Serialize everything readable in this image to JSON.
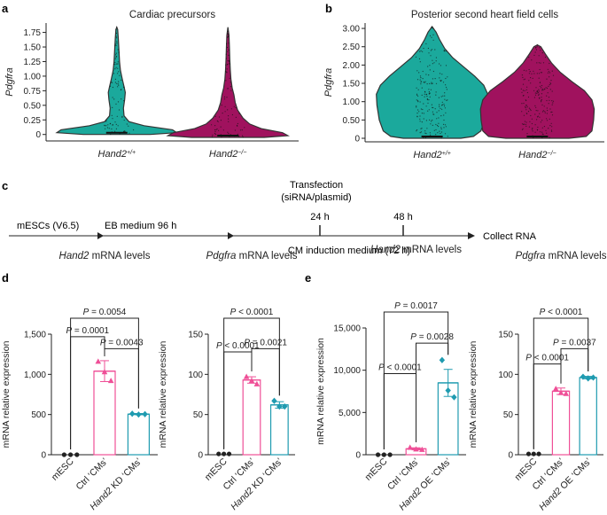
{
  "panel_letters": [
    "a",
    "b",
    "c",
    "d",
    "e"
  ],
  "colors": {
    "teal": "#1ba99c",
    "magenta": "#a0125e",
    "pink": "#ef4f97",
    "teal_bar": "#1f9bb0",
    "dark": "#333333"
  },
  "chart_data": [
    {
      "id": "a",
      "type": "violin",
      "title": "Cardiac precursors",
      "ylabel": "Pdgfra",
      "ylim": [
        0,
        1.85
      ],
      "yticks": [
        "0",
        "0.25",
        "0.50",
        "0.75",
        "1.00",
        "1.25",
        "1.50",
        "1.75"
      ],
      "categories": [
        {
          "gene": "Hand2",
          "sup": "+/+"
        },
        {
          "gene": "Hand2",
          "sup": "−/−"
        }
      ],
      "violins": [
        {
          "group": "Hand2+/+",
          "color": "teal",
          "profile": [
            [
              0,
              0.55
            ],
            [
              0.03,
              0.99
            ],
            [
              0.08,
              0.92
            ],
            [
              0.15,
              0.45
            ],
            [
              0.22,
              0.2
            ],
            [
              0.32,
              0.12
            ],
            [
              0.45,
              0.11
            ],
            [
              0.6,
              0.13
            ],
            [
              0.72,
              0.14
            ],
            [
              0.82,
              0.12
            ],
            [
              0.95,
              0.09
            ],
            [
              1.1,
              0.06
            ],
            [
              1.25,
              0.045
            ],
            [
              1.45,
              0.035
            ],
            [
              1.65,
              0.025
            ],
            [
              1.8,
              0.015
            ],
            [
              1.84,
              0.0
            ]
          ]
        },
        {
          "group": "Hand2−/−",
          "color": "magenta",
          "profile": [
            [
              -0.05,
              0.6
            ],
            [
              -0.02,
              0.99
            ],
            [
              0.03,
              0.9
            ],
            [
              0.1,
              0.55
            ],
            [
              0.18,
              0.36
            ],
            [
              0.28,
              0.25
            ],
            [
              0.42,
              0.16
            ],
            [
              0.55,
              0.12
            ],
            [
              0.68,
              0.1
            ],
            [
              0.8,
              0.07
            ],
            [
              0.95,
              0.05
            ],
            [
              1.1,
              0.04
            ],
            [
              1.3,
              0.03
            ],
            [
              1.5,
              0.025
            ],
            [
              1.7,
              0.018
            ],
            [
              1.84,
              0.0
            ]
          ]
        }
      ]
    },
    {
      "id": "b",
      "type": "violin",
      "title": "Posterior second heart field cells",
      "ylabel": "Pdgfra",
      "ylim": [
        0,
        3.05
      ],
      "yticks": [
        "0",
        "0.50",
        "1.00",
        "1.50",
        "2.00",
        "2.50",
        "3.00"
      ],
      "categories": [
        {
          "gene": "Hand2",
          "sup": "+/+"
        },
        {
          "gene": "Hand2",
          "sup": "−/−"
        }
      ],
      "violins": [
        {
          "group": "Hand2+/+",
          "color": "teal",
          "profile": [
            [
              0,
              0.5
            ],
            [
              0.05,
              0.72
            ],
            [
              0.2,
              0.85
            ],
            [
              0.5,
              0.92
            ],
            [
              0.9,
              0.96
            ],
            [
              1.2,
              0.97
            ],
            [
              1.45,
              0.9
            ],
            [
              1.7,
              0.74
            ],
            [
              1.95,
              0.55
            ],
            [
              2.2,
              0.36
            ],
            [
              2.45,
              0.22
            ],
            [
              2.7,
              0.13
            ],
            [
              2.9,
              0.07
            ],
            [
              3.05,
              0.0
            ]
          ]
        },
        {
          "group": "Hand2−/−",
          "color": "magenta",
          "profile": [
            [
              0,
              0.55
            ],
            [
              0.05,
              0.85
            ],
            [
              0.2,
              0.95
            ],
            [
              0.5,
              0.98
            ],
            [
              0.8,
              0.99
            ],
            [
              1.05,
              0.95
            ],
            [
              1.3,
              0.82
            ],
            [
              1.55,
              0.6
            ],
            [
              1.8,
              0.4
            ],
            [
              2.05,
              0.25
            ],
            [
              2.3,
              0.14
            ],
            [
              2.5,
              0.06
            ],
            [
              2.55,
              0.0
            ]
          ]
        }
      ]
    },
    {
      "id": "d1",
      "type": "bar",
      "title_gene": "Hand2",
      "title_rest": " mRNA levels",
      "ylabel": "mRNA relative expression",
      "ylim": [
        0,
        1500
      ],
      "yticks": [
        0,
        500,
        1000,
        1500
      ],
      "ytick_labels": [
        "0",
        "500",
        "1,000",
        "1,500"
      ],
      "categories": [
        {
          "text": "mESC"
        },
        {
          "text": "Ctrl ‘CMs’"
        },
        {
          "gene": "Hand2",
          "text": " KD ‘CMs’"
        }
      ],
      "values": [
        0,
        1040,
        505
      ],
      "errors": [
        0,
        130,
        8
      ],
      "points": [
        [
          0,
          0,
          0
        ],
        [
          1160,
          1030,
          920
        ],
        [
          510,
          500,
          505
        ]
      ],
      "markers": [
        "circle",
        "triangle",
        "diamond"
      ],
      "colors": [
        "dark",
        "pink",
        "teal_bar"
      ],
      "comparisons": [
        {
          "text": "P = 0.0001",
          "from": 0,
          "to": 1
        },
        {
          "text": "P = 0.0043",
          "from": 1,
          "to": 2
        },
        {
          "text": "P = 0.0054",
          "from": 0,
          "to": 2
        }
      ]
    },
    {
      "id": "d2",
      "type": "bar",
      "title_gene": "Pdgfra",
      "title_rest": " mRNA levels",
      "ylabel": "mRNA relative expression",
      "ylim": [
        0,
        150
      ],
      "yticks": [
        0,
        50,
        100,
        150
      ],
      "ytick_labels": [
        "0",
        "50",
        "100",
        "150"
      ],
      "categories": [
        {
          "text": "mESC"
        },
        {
          "text": "Ctrl ‘CMs’"
        },
        {
          "gene": "Hand2",
          "text": " KD ‘CMs’"
        }
      ],
      "values": [
        1,
        93,
        62
      ],
      "errors": [
        0,
        4,
        4
      ],
      "points": [
        [
          1,
          1,
          1
        ],
        [
          97,
          92,
          88
        ],
        [
          67,
          60,
          60
        ]
      ],
      "markers": [
        "circle",
        "triangle",
        "diamond"
      ],
      "colors": [
        "dark",
        "pink",
        "teal_bar"
      ],
      "comparisons": [
        {
          "text": "P < 0.0001",
          "from": 0,
          "to": 1
        },
        {
          "text": "P = 0.0021",
          "from": 1,
          "to": 2
        },
        {
          "text": "P < 0.0001",
          "from": 0,
          "to": 2
        }
      ]
    },
    {
      "id": "e1",
      "type": "bar",
      "title_gene": "Hand2",
      "title_rest": " mRNA levels",
      "ylabel": "mRNA relative expression",
      "ylim": [
        0,
        15000
      ],
      "yticks": [
        0,
        5000,
        10000,
        15000
      ],
      "ytick_labels": [
        "0",
        "5,000",
        "10,000",
        "15,000"
      ],
      "categories": [
        {
          "text": "mESC"
        },
        {
          "text": "Ctrl ‘CMs’"
        },
        {
          "gene": "Hand2",
          "text": " OE ‘CMs’"
        }
      ],
      "values": [
        0,
        700,
        8500
      ],
      "errors": [
        0,
        120,
        1600
      ],
      "points": [
        [
          0,
          0,
          0
        ],
        [
          850,
          650,
          600
        ],
        [
          11200,
          7600,
          6800
        ]
      ],
      "markers": [
        "circle",
        "triangle",
        "diamond"
      ],
      "colors": [
        "dark",
        "pink",
        "teal_bar"
      ],
      "comparisons": [
        {
          "text": "P < 0.0001",
          "from": 0,
          "to": 1
        },
        {
          "text": "P = 0.0028",
          "from": 1,
          "to": 2
        },
        {
          "text": "P = 0.0017",
          "from": 0,
          "to": 2
        }
      ]
    },
    {
      "id": "e2",
      "type": "bar",
      "title_gene": "Pdgfra",
      "title_rest": " mRNA levels",
      "ylabel": "mRNA relative expression",
      "ylim": [
        0,
        150
      ],
      "yticks": [
        0,
        50,
        100,
        150
      ],
      "ytick_labels": [
        "0",
        "50",
        "100",
        "150"
      ],
      "categories": [
        {
          "text": "mESC"
        },
        {
          "text": "Ctrl ‘CMs’"
        },
        {
          "gene": "Hand2",
          "text": " OE ‘CMs’"
        }
      ],
      "values": [
        1,
        79,
        96
      ],
      "errors": [
        0,
        4,
        1.5
      ],
      "points": [
        [
          1,
          1,
          1
        ],
        [
          82,
          77,
          76
        ],
        [
          97,
          95,
          96
        ]
      ],
      "markers": [
        "circle",
        "triangle",
        "diamond"
      ],
      "colors": [
        "dark",
        "pink",
        "teal_bar"
      ],
      "comparisons": [
        {
          "text": "P < 0.0001",
          "from": 0,
          "to": 1
        },
        {
          "text": "P = 0.0037",
          "from": 1,
          "to": 2
        },
        {
          "text": "P < 0.0001",
          "from": 0,
          "to": 2
        }
      ]
    }
  ],
  "timeline": {
    "events": [
      {
        "text": "mESCs (V6.5)"
      },
      {
        "text": "EB medium 96 h"
      },
      {
        "text": "CM induction medium (72 h)"
      },
      {
        "text": "Collect RNA"
      }
    ],
    "markers": [
      {
        "text": "24 h"
      },
      {
        "text": "48 h"
      }
    ],
    "transfection": [
      "Transfection",
      "(siRNA/plasmid)"
    ]
  }
}
